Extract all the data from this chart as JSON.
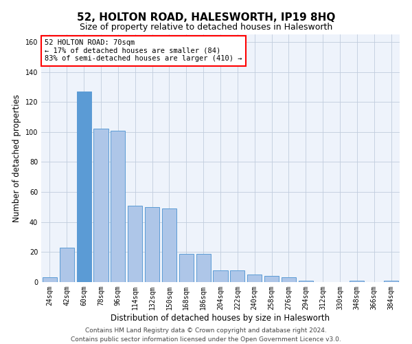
{
  "title": "52, HOLTON ROAD, HALESWORTH, IP19 8HQ",
  "subtitle": "Size of property relative to detached houses in Halesworth",
  "xlabel": "Distribution of detached houses by size in Halesworth",
  "ylabel": "Number of detached properties",
  "bar_color": "#aec6e8",
  "bar_edge_color": "#5b9bd5",
  "background_color": "#eef3fb",
  "categories": [
    "24sqm",
    "42sqm",
    "60sqm",
    "78sqm",
    "96sqm",
    "114sqm",
    "132sqm",
    "150sqm",
    "168sqm",
    "186sqm",
    "204sqm",
    "222sqm",
    "240sqm",
    "258sqm",
    "276sqm",
    "294sqm",
    "312sqm",
    "330sqm",
    "348sqm",
    "366sqm",
    "384sqm"
  ],
  "values": [
    3,
    23,
    127,
    102,
    101,
    51,
    50,
    49,
    19,
    19,
    8,
    8,
    5,
    4,
    3,
    1,
    0,
    0,
    1,
    0,
    1
  ],
  "ylim": [
    0,
    165
  ],
  "yticks": [
    0,
    20,
    40,
    60,
    80,
    100,
    120,
    140,
    160
  ],
  "annotation_text": "52 HOLTON ROAD: 70sqm\n← 17% of detached houses are smaller (84)\n83% of semi-detached houses are larger (410) →",
  "highlight_bar_index": 2,
  "highlight_bar_color": "#5b9bd5",
  "footer_text": "Contains HM Land Registry data © Crown copyright and database right 2024.\nContains public sector information licensed under the Open Government Licence v3.0.",
  "grid_color": "#c0ccdd",
  "title_fontsize": 11,
  "subtitle_fontsize": 9,
  "xlabel_fontsize": 8.5,
  "ylabel_fontsize": 8.5,
  "tick_fontsize": 7,
  "annotation_fontsize": 7.5,
  "footer_fontsize": 6.5
}
